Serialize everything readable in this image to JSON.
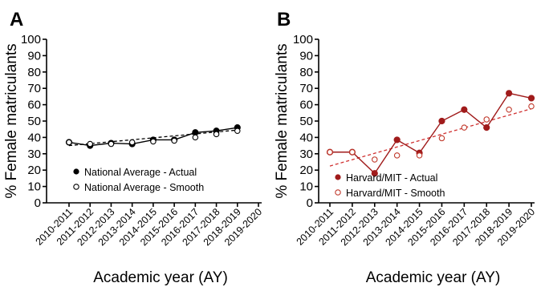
{
  "chart_data": [
    {
      "panel": "A",
      "type": "line",
      "xlabel": "Academic year (AY)",
      "ylabel": "% Female matriculants",
      "ylim": [
        0,
        100
      ],
      "yticks": [
        "0",
        "10",
        "20",
        "30",
        "40",
        "50",
        "60",
        "70",
        "80",
        "90",
        "100"
      ],
      "categories": [
        "2010-2011",
        "2011-2012",
        "2012-2013",
        "2013-2014",
        "2014-2015",
        "2015-2016",
        "2016-2017",
        "2017-2018",
        "2018-2019",
        "2019-2020"
      ],
      "legend_position": "bottom-left",
      "colors": {
        "actual": "#000000",
        "smooth": "#000000",
        "trend": "#000000"
      },
      "series": [
        {
          "name": "National Average - Actual",
          "marker": "filled-circle",
          "line": "solid",
          "values": [
            37,
            35,
            36.5,
            36,
            38.5,
            38.5,
            43,
            44,
            46,
            null
          ]
        },
        {
          "name": "National Average - Smooth",
          "marker": "open-circle",
          "line": "none",
          "values": [
            37,
            36,
            36,
            37,
            37.5,
            38,
            40,
            42,
            44,
            null
          ]
        }
      ],
      "trendline": {
        "line": "dashed",
        "start": [
          0,
          35
        ],
        "end": [
          8,
          44.5
        ]
      }
    },
    {
      "panel": "B",
      "type": "line",
      "xlabel": "Academic year (AY)",
      "ylabel": "% Female matriculants",
      "ylim": [
        0,
        100
      ],
      "yticks": [
        "0",
        "10",
        "20",
        "30",
        "40",
        "50",
        "60",
        "70",
        "80",
        "90",
        "100"
      ],
      "categories": [
        "2010-2011",
        "2011-2012",
        "2012-2013",
        "2013-2014",
        "2014-2015",
        "2015-2016",
        "2016-2017",
        "2017-2018",
        "2018-2019",
        "2019-2020"
      ],
      "legend_position": "bottom-left",
      "colors": {
        "actual": "#a01b1b",
        "smooth": "#c0392b",
        "trend": "#d03030"
      },
      "series": [
        {
          "name": "Harvard/MIT - Actual",
          "marker": "filled-circle",
          "line": "solid",
          "values": [
            31,
            31,
            18,
            38.5,
            30.5,
            50,
            57,
            46,
            67,
            64
          ]
        },
        {
          "name": "Harvard/MIT - Smooth",
          "marker": "open-circle",
          "line": "none",
          "values": [
            31,
            31,
            26.5,
            29,
            29,
            39.5,
            46,
            51,
            57,
            59
          ]
        }
      ],
      "trendline": {
        "line": "dashed",
        "start": [
          0,
          22.5
        ],
        "end": [
          9,
          57.5
        ]
      }
    }
  ]
}
